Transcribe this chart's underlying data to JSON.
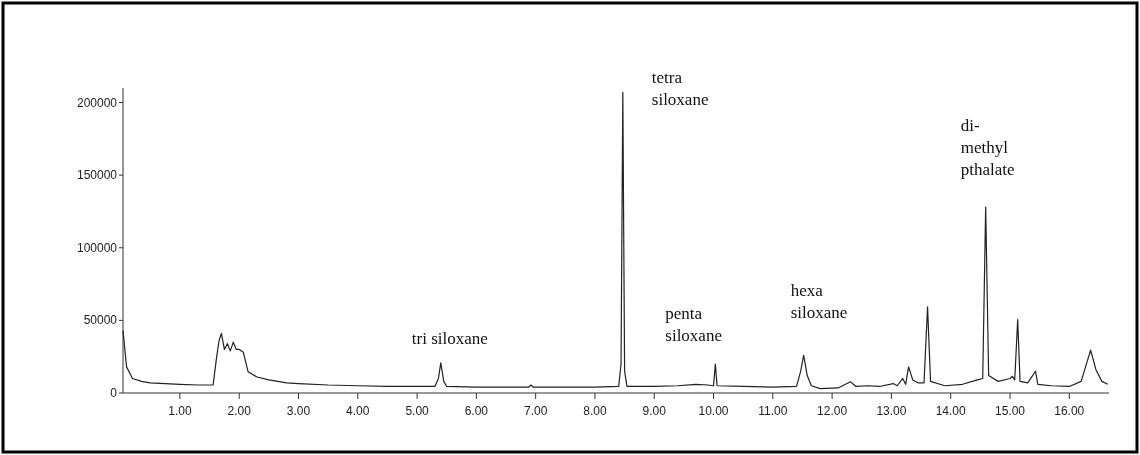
{
  "chart_data": {
    "type": "line",
    "x": [
      0.04,
      0.1,
      0.2,
      0.35,
      0.5,
      0.75,
      1.0,
      1.3,
      1.56,
      1.62,
      1.66,
      1.7,
      1.75,
      1.8,
      1.85,
      1.9,
      1.95,
      2.0,
      2.07,
      2.15,
      2.3,
      2.5,
      2.8,
      3.0,
      3.5,
      4.0,
      4.5,
      5.0,
      5.3,
      5.36,
      5.4,
      5.45,
      5.5,
      6.0,
      6.5,
      6.88,
      6.92,
      6.96,
      7.5,
      8.0,
      8.4,
      8.44,
      8.47,
      8.5,
      8.54,
      9.0,
      9.4,
      9.7,
      9.9,
      10.0,
      10.03,
      10.06,
      10.5,
      11.0,
      11.4,
      11.47,
      11.52,
      11.58,
      11.65,
      11.8,
      12.1,
      12.31,
      12.4,
      12.6,
      12.8,
      13.03,
      13.1,
      13.19,
      13.24,
      13.29,
      13.36,
      13.45,
      13.55,
      13.61,
      13.66,
      13.9,
      14.2,
      14.45,
      14.54,
      14.59,
      14.64,
      14.8,
      15.0,
      15.04,
      15.08,
      15.13,
      15.17,
      15.3,
      15.43,
      15.47,
      15.7,
      16.0,
      16.2,
      16.36,
      16.45,
      16.55,
      16.65
    ],
    "series": [
      {
        "color": "#222222",
        "values": [
          43000,
          18000,
          10000,
          8000,
          7000,
          6500,
          6000,
          5500,
          5500,
          25000,
          36000,
          41000,
          30000,
          34000,
          29000,
          35000,
          30000,
          30000,
          28000,
          14600,
          11000,
          9000,
          7000,
          6500,
          5500,
          5000,
          4500,
          4500,
          4500,
          10000,
          20800,
          8000,
          4500,
          4000,
          4000,
          4000,
          5500,
          4000,
          4000,
          4000,
          4500,
          20000,
          207000,
          15000,
          4500,
          4500,
          5000,
          6000,
          5500,
          5000,
          19900,
          5000,
          4500,
          4000,
          4500,
          15000,
          26000,
          12000,
          5000,
          3000,
          3500,
          7800,
          4500,
          5000,
          4500,
          6500,
          5000,
          10000,
          6000,
          18000,
          9000,
          7000,
          7000,
          59300,
          8000,
          5000,
          6000,
          9000,
          10000,
          128000,
          12000,
          8000,
          10000,
          11500,
          9000,
          50600,
          8000,
          7000,
          15000,
          6000,
          5000,
          4500,
          8000,
          29500,
          16000,
          8000,
          6000
        ]
      }
    ],
    "xlim": [
      0.04,
      16.67
    ],
    "ylim": [
      0,
      210000
    ],
    "xticks": [
      {
        "value": 1,
        "label": "1.00"
      },
      {
        "value": 2,
        "label": "2.00"
      },
      {
        "value": 3,
        "label": "3.00"
      },
      {
        "value": 4,
        "label": "4.00"
      },
      {
        "value": 5,
        "label": "5.00"
      },
      {
        "value": 6,
        "label": "6.00"
      },
      {
        "value": 7,
        "label": "7.00"
      },
      {
        "value": 8,
        "label": "8.00"
      },
      {
        "value": 9,
        "label": "9.00"
      },
      {
        "value": 10,
        "label": "10.00"
      },
      {
        "value": 11,
        "label": "11.00"
      },
      {
        "value": 12,
        "label": "12.00"
      },
      {
        "value": 13,
        "label": "13.00"
      },
      {
        "value": 14,
        "label": "14.00"
      },
      {
        "value": 15,
        "label": "15.00"
      },
      {
        "value": 16,
        "label": "16.00"
      }
    ],
    "yticks": [
      0,
      50000,
      100000,
      150000,
      200000
    ],
    "annotations": [
      {
        "text": "tri siloxane",
        "x": 5.4,
        "y": 20800
      },
      {
        "text": "tetra\nsiloxane",
        "x": 8.47,
        "y": 207000
      },
      {
        "text": "penta\nsiloxane",
        "x": 10.03,
        "y": 19900
      },
      {
        "text": "hexa\nsiloxane",
        "x": 11.52,
        "y": 26000
      },
      {
        "text": "di-\nmethyl\npthalate",
        "x": 14.59,
        "y": 128000
      }
    ]
  }
}
